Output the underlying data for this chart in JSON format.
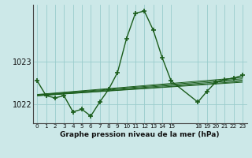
{
  "title": "Graphe pression niveau de la mer (hPa)",
  "bg_color": "#cce8e8",
  "grid_color": "#99cccc",
  "line_color": "#1a5c1a",
  "xlim": [
    -0.5,
    23.5
  ],
  "ylim": [
    1021.55,
    1024.35
  ],
  "yticks": [
    1022,
    1023
  ],
  "xticks": [
    0,
    1,
    2,
    3,
    4,
    5,
    6,
    7,
    8,
    9,
    10,
    11,
    12,
    13,
    14,
    15,
    18,
    19,
    20,
    21,
    22,
    23
  ],
  "xtick_labels": [
    "0",
    "1",
    "2",
    "3",
    "4",
    "5",
    "6",
    "7",
    "8",
    "9",
    "10",
    "11",
    "12",
    "13",
    "14",
    "15",
    "18",
    "19",
    "20",
    "21",
    "22",
    "23"
  ],
  "main_x": [
    0,
    1,
    2,
    3,
    4,
    5,
    6,
    7,
    8,
    9,
    10,
    11,
    12,
    13,
    14,
    15,
    18,
    19,
    20,
    21,
    22,
    23
  ],
  "main_y": [
    1022.55,
    1022.2,
    1022.15,
    1022.2,
    1021.82,
    1021.88,
    1021.72,
    1022.05,
    1022.35,
    1022.75,
    1023.55,
    1024.15,
    1024.2,
    1023.75,
    1023.1,
    1022.55,
    1022.05,
    1022.3,
    1022.52,
    1022.58,
    1022.62,
    1022.68
  ],
  "trend_lines": [
    {
      "x": [
        0,
        23
      ],
      "y": [
        1022.2,
        1022.52
      ]
    },
    {
      "x": [
        0,
        23
      ],
      "y": [
        1022.2,
        1022.54
      ]
    },
    {
      "x": [
        0,
        23
      ],
      "y": [
        1022.21,
        1022.57
      ]
    },
    {
      "x": [
        0,
        23
      ],
      "y": [
        1022.22,
        1022.6
      ]
    },
    {
      "x": [
        0,
        23
      ],
      "y": [
        1022.23,
        1022.63
      ]
    }
  ]
}
